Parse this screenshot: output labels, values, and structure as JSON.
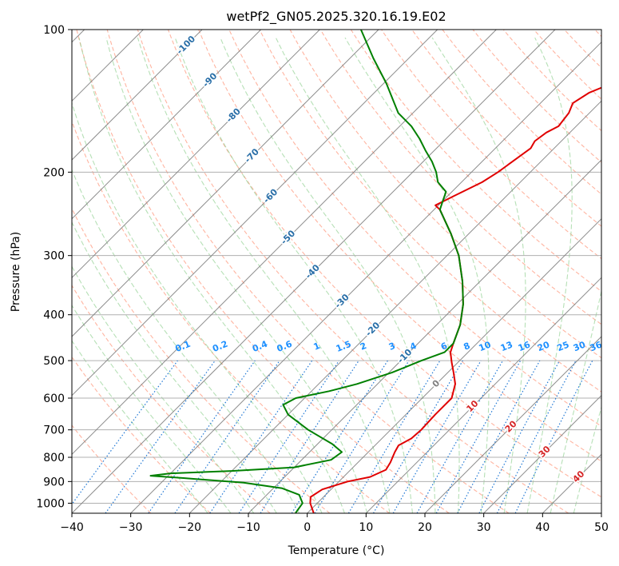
{
  "chart_data": {
    "type": "line",
    "title": "wetPf2_GN05.2025.320.16.19.E02",
    "xlabel": "Temperature (°C)",
    "ylabel": "Pressure (hPa)",
    "xlim": [
      -40,
      50
    ],
    "ylim": [
      1050,
      100
    ],
    "y_scale": "log",
    "skew": "skew-T",
    "x_ticks": [
      "−40",
      "−30",
      "−20",
      "−10",
      "0",
      "10",
      "20",
      "30",
      "40",
      "50"
    ],
    "y_ticks": [
      "100",
      "200",
      "300",
      "400",
      "500",
      "600",
      "700",
      "800",
      "900",
      "1000"
    ],
    "grid": true,
    "series": [
      {
        "color": "#e00000",
        "role": "temperature",
        "points": [
          [
            1050,
            1.1
          ],
          [
            1000,
            -1.2
          ],
          [
            970,
            -2.2
          ],
          [
            935,
            -1.5
          ],
          [
            900,
            1.5
          ],
          [
            880,
            4.5
          ],
          [
            850,
            6.0
          ],
          [
            820,
            5.5
          ],
          [
            780,
            4.5
          ],
          [
            755,
            4.0
          ],
          [
            730,
            5.0
          ],
          [
            700,
            5.2
          ],
          [
            650,
            5.0
          ],
          [
            600,
            5.0
          ],
          [
            560,
            3.2
          ],
          [
            530,
            1.0
          ],
          [
            505,
            -1.0
          ],
          [
            480,
            -3.0
          ],
          [
            460,
            -4.0
          ],
          [
            420,
            -6.0
          ],
          [
            380,
            -9.0
          ],
          [
            340,
            -13.0
          ],
          [
            300,
            -18.0
          ],
          [
            270,
            -23.0
          ],
          [
            240,
            -29.0
          ],
          [
            235,
            -30.5
          ],
          [
            225,
            -29.0
          ],
          [
            210,
            -26.5
          ],
          [
            200,
            -25.5
          ],
          [
            185,
            -24.5
          ],
          [
            178,
            -24.0
          ],
          [
            172,
            -24.5
          ],
          [
            165,
            -24.0
          ],
          [
            160,
            -23.0
          ],
          [
            150,
            -23.5
          ],
          [
            143,
            -24.5
          ],
          [
            136,
            -23.5
          ],
          [
            128,
            -20.5
          ],
          [
            115,
            -17.5
          ],
          [
            100,
            -15.0
          ]
        ]
      },
      {
        "color": "#008000",
        "role": "dewpoint",
        "points": [
          [
            1050,
            -2.0
          ],
          [
            1000,
            -2.5
          ],
          [
            960,
            -4.5
          ],
          [
            930,
            -8.5
          ],
          [
            905,
            -16.0
          ],
          [
            885,
            -27.0
          ],
          [
            875,
            -33.0
          ],
          [
            865,
            -30.0
          ],
          [
            855,
            -20.0
          ],
          [
            840,
            -10.0
          ],
          [
            810,
            -5.0
          ],
          [
            780,
            -4.5
          ],
          [
            750,
            -7.5
          ],
          [
            700,
            -14.0
          ],
          [
            650,
            -20.0
          ],
          [
            620,
            -22.5
          ],
          [
            600,
            -21.5
          ],
          [
            580,
            -17.0
          ],
          [
            560,
            -13.5
          ],
          [
            530,
            -9.5
          ],
          [
            500,
            -6.5
          ],
          [
            480,
            -4.0
          ],
          [
            460,
            -4.0
          ],
          [
            420,
            -6.0
          ],
          [
            380,
            -9.0
          ],
          [
            340,
            -13.0
          ],
          [
            300,
            -18.0
          ],
          [
            270,
            -23.0
          ],
          [
            240,
            -29.0
          ],
          [
            230,
            -30.0
          ],
          [
            220,
            -31.0
          ],
          [
            210,
            -34.0
          ],
          [
            200,
            -36.0
          ],
          [
            190,
            -38.5
          ],
          [
            180,
            -41.5
          ],
          [
            170,
            -44.5
          ],
          [
            160,
            -48.0
          ],
          [
            150,
            -52.5
          ],
          [
            130,
            -59.5
          ],
          [
            115,
            -66.0
          ],
          [
            100,
            -73.0
          ]
        ]
      }
    ],
    "temperature_isotherm_labels": [
      "-100",
      "-90",
      "-80",
      "-70",
      "-60",
      "-50",
      "-40",
      "-30",
      "-20",
      "-10",
      "0",
      "10",
      "20",
      "30",
      "40"
    ],
    "mixing_ratio_labels": [
      "0.1",
      "0.2",
      "0.4",
      "0.6",
      "1",
      "1.5",
      "2",
      "3",
      "4",
      "6",
      "8",
      "10",
      "13",
      "16",
      "20",
      "25",
      "30",
      "36"
    ],
    "colors": {
      "isotherm": "#808080",
      "dry_adiabat": "#ff9b80",
      "moist_adiabat": "#8fcf8f",
      "mixing_ratio": "#1f77d4",
      "isotherm_label_neg": "#2a6fa8",
      "isotherm_label_pos": "#d62728",
      "isotherm_label_zero": "#808080",
      "mixing_label": "#1e90ff",
      "hgrid": "#b0b0b0"
    }
  }
}
